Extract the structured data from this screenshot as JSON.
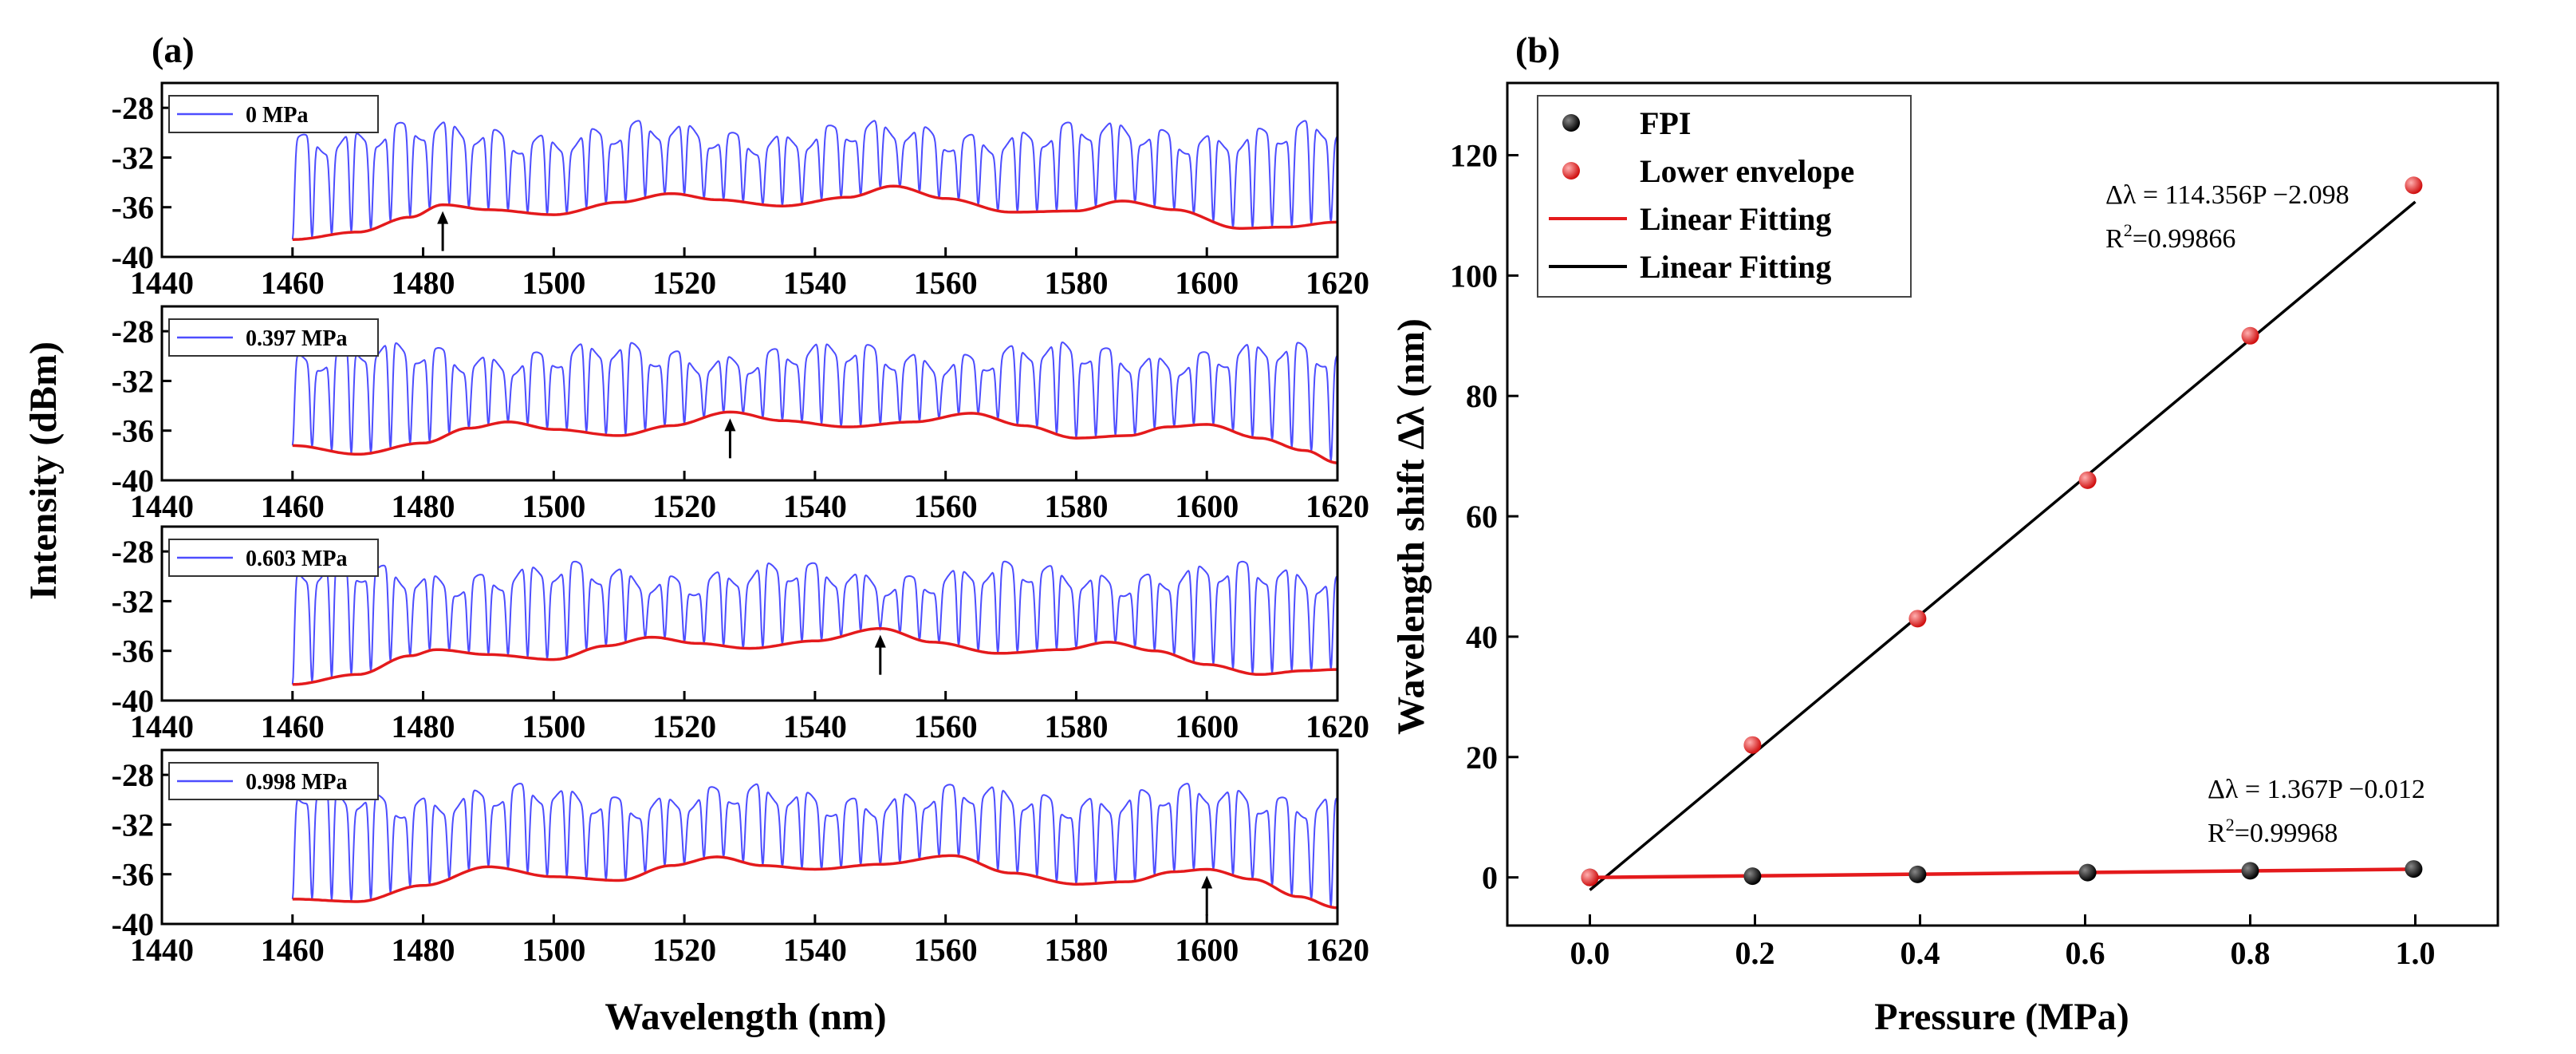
{
  "colors": {
    "spectrum": "#4d4dff",
    "envelope": "#e41a1c",
    "fpi_points": "#111111",
    "lower_points": "#e82020",
    "axis": "#000000"
  },
  "chart_data": [
    {
      "panel": "(a)",
      "type": "line",
      "xlabel": "Wavelength (nm)",
      "ylabel": "Intensity (dBm)",
      "xlim": [
        1440,
        1620
      ],
      "xticks": [
        "1440",
        "1460",
        "1480",
        "1500",
        "1520",
        "1540",
        "1560",
        "1580",
        "1600",
        "1620"
      ],
      "ylim": [
        -40,
        -26
      ],
      "yticks": [
        "-28",
        "-32",
        "-36",
        "-40"
      ],
      "subplots": [
        {
          "legend": "0 MPa",
          "arrow_x": 1483,
          "envelope": [
            [
              1460,
              -38.6
            ],
            [
              1470,
              -38.0
            ],
            [
              1478,
              -36.8
            ],
            [
              1483,
              -35.8
            ],
            [
              1490,
              -36.2
            ],
            [
              1500,
              -36.6
            ],
            [
              1510,
              -35.6
            ],
            [
              1518,
              -34.9
            ],
            [
              1525,
              -35.4
            ],
            [
              1535,
              -35.9
            ],
            [
              1545,
              -35.2
            ],
            [
              1552,
              -34.3
            ],
            [
              1560,
              -35.3
            ],
            [
              1570,
              -36.4
            ],
            [
              1580,
              -36.3
            ],
            [
              1587,
              -35.5
            ],
            [
              1595,
              -36.2
            ],
            [
              1605,
              -37.7
            ],
            [
              1612,
              -37.6
            ],
            [
              1620,
              -37.2
            ]
          ],
          "spectrum": {
            "start": 1460,
            "end": 1620,
            "fsr": 3.0,
            "top": -29.8,
            "mod_period": 34,
            "mod_amp": 1.2,
            "mod_phase": 1.2
          }
        },
        {
          "legend": "0.397 MPa",
          "arrow_x": 1527,
          "envelope": [
            [
              1460,
              -37.2
            ],
            [
              1470,
              -37.9
            ],
            [
              1480,
              -37.0
            ],
            [
              1487,
              -35.8
            ],
            [
              1493,
              -35.3
            ],
            [
              1500,
              -35.9
            ],
            [
              1510,
              -36.4
            ],
            [
              1518,
              -35.6
            ],
            [
              1527,
              -34.5
            ],
            [
              1535,
              -35.2
            ],
            [
              1545,
              -35.7
            ],
            [
              1555,
              -35.3
            ],
            [
              1564,
              -34.6
            ],
            [
              1572,
              -35.6
            ],
            [
              1580,
              -36.6
            ],
            [
              1588,
              -36.4
            ],
            [
              1594,
              -35.7
            ],
            [
              1600,
              -35.5
            ],
            [
              1608,
              -36.6
            ],
            [
              1615,
              -37.6
            ],
            [
              1620,
              -38.6
            ]
          ],
          "spectrum": {
            "start": 1460,
            "end": 1620,
            "fsr": 3.0,
            "top": -29.6,
            "mod_period": 34,
            "mod_amp": 1.2,
            "mod_phase": 2.4
          }
        },
        {
          "legend": "0.603 MPa",
          "arrow_x": 1550,
          "envelope": [
            [
              1460,
              -38.7
            ],
            [
              1470,
              -37.9
            ],
            [
              1478,
              -36.4
            ],
            [
              1482,
              -35.9
            ],
            [
              1490,
              -36.3
            ],
            [
              1500,
              -36.7
            ],
            [
              1508,
              -35.6
            ],
            [
              1515,
              -34.9
            ],
            [
              1522,
              -35.4
            ],
            [
              1530,
              -35.8
            ],
            [
              1540,
              -35.2
            ],
            [
              1550,
              -34.2
            ],
            [
              1558,
              -35.3
            ],
            [
              1568,
              -36.2
            ],
            [
              1578,
              -35.9
            ],
            [
              1585,
              -35.3
            ],
            [
              1592,
              -36.0
            ],
            [
              1600,
              -37.1
            ],
            [
              1608,
              -37.9
            ],
            [
              1615,
              -37.6
            ],
            [
              1620,
              -37.5
            ]
          ],
          "spectrum": {
            "start": 1460,
            "end": 1620,
            "fsr": 3.0,
            "top": -29.6,
            "mod_period": 34,
            "mod_amp": 1.2,
            "mod_phase": 3.6
          }
        },
        {
          "legend": "0.998 MPa",
          "arrow_x": 1600,
          "envelope": [
            [
              1460,
              -38.0
            ],
            [
              1470,
              -38.2
            ],
            [
              1480,
              -36.9
            ],
            [
              1490,
              -35.4
            ],
            [
              1500,
              -36.2
            ],
            [
              1510,
              -36.5
            ],
            [
              1518,
              -35.3
            ],
            [
              1525,
              -34.6
            ],
            [
              1532,
              -35.3
            ],
            [
              1540,
              -35.6
            ],
            [
              1550,
              -35.2
            ],
            [
              1561,
              -34.5
            ],
            [
              1570,
              -35.9
            ],
            [
              1580,
              -36.8
            ],
            [
              1588,
              -36.6
            ],
            [
              1595,
              -35.8
            ],
            [
              1600,
              -35.6
            ],
            [
              1607,
              -36.4
            ],
            [
              1614,
              -37.8
            ],
            [
              1620,
              -38.7
            ]
          ],
          "spectrum": {
            "start": 1460,
            "end": 1620,
            "fsr": 3.0,
            "top": -29.5,
            "mod_period": 34,
            "mod_amp": 1.2,
            "mod_phase": 4.8
          }
        }
      ]
    },
    {
      "panel": "(b)",
      "type": "scatter",
      "xlabel": "Pressure (MPa)",
      "ylabel": "Wavelength shift Δλ (nm)",
      "xlim": [
        -0.1,
        1.1
      ],
      "xticks": [
        "0.0",
        "0.2",
        "0.4",
        "0.6",
        "0.8",
        "1.0"
      ],
      "ylim": [
        -8,
        132
      ],
      "yticks": [
        "0",
        "20",
        "40",
        "60",
        "80",
        "100",
        "120"
      ],
      "legend": [
        {
          "label": "FPI",
          "kind": "marker",
          "color": "#111111"
        },
        {
          "label": "Lower envelope",
          "kind": "marker",
          "color": "#e82020"
        },
        {
          "label": "Linear Fitting",
          "kind": "line",
          "color": "#e41a1c"
        },
        {
          "label": "Linear Fitting",
          "kind": "line",
          "color": "#000000"
        }
      ],
      "series": [
        {
          "name": "FPI",
          "x": [
            0,
            0.197,
            0.397,
            0.603,
            0.8,
            0.998
          ],
          "y": [
            0,
            0.2,
            0.5,
            0.8,
            1.1,
            1.4
          ]
        },
        {
          "name": "Lower envelope",
          "x": [
            0,
            0.197,
            0.397,
            0.603,
            0.8,
            0.998
          ],
          "y": [
            0,
            22,
            43,
            66,
            90,
            115
          ]
        }
      ],
      "fits": [
        {
          "slope": 114.356,
          "intercept": -2.098,
          "x_range": [
            0,
            1.0
          ],
          "color": "#000000",
          "equation": "Δλ  = 114.356P −2.098",
          "r2_label": "=0.99866"
        },
        {
          "slope": 1.367,
          "intercept": -0.012,
          "x_range": [
            0,
            1.0
          ],
          "color": "#e41a1c",
          "equation": "Δλ  = 1.367P −0.012",
          "r2_label": "=0.99968"
        }
      ]
    }
  ]
}
